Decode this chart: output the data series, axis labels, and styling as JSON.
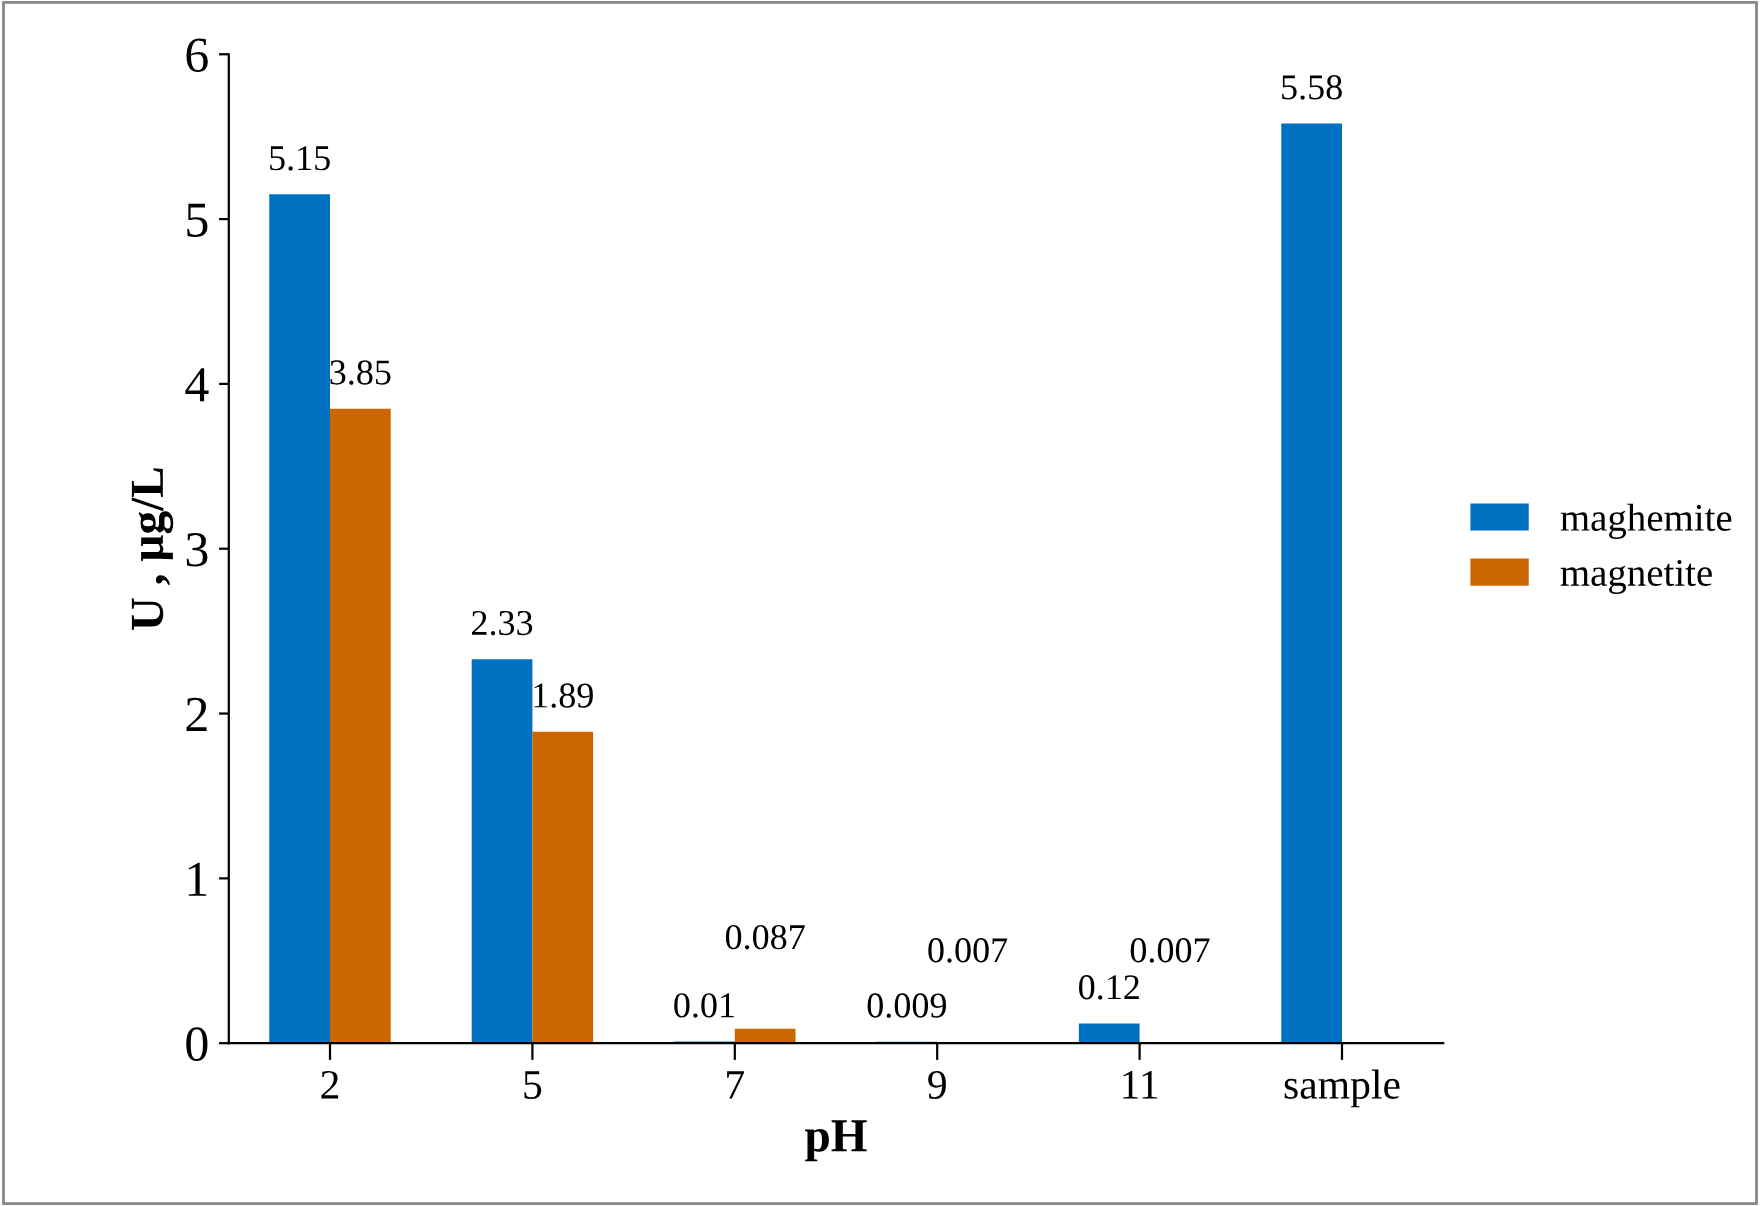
{
  "chart_data": {
    "type": "bar",
    "xlabel": "pH",
    "ylabel": "U , µg/L",
    "categories": [
      "2",
      "5",
      "7",
      "9",
      "11",
      "sample"
    ],
    "series": [
      {
        "name": "maghemite",
        "color": "#0070c0",
        "values": [
          5.15,
          2.33,
          0.01,
          0.009,
          0.12,
          5.58
        ]
      },
      {
        "name": "magnetite",
        "color": "#cc6600",
        "values": [
          3.85,
          1.89,
          0.087,
          0.007,
          0.007,
          null
        ]
      }
    ],
    "ylim": [
      0,
      6
    ],
    "yticks": [
      0,
      1,
      2,
      3,
      4,
      5,
      6
    ],
    "grid": false,
    "legend": "right",
    "data_labels": true
  }
}
